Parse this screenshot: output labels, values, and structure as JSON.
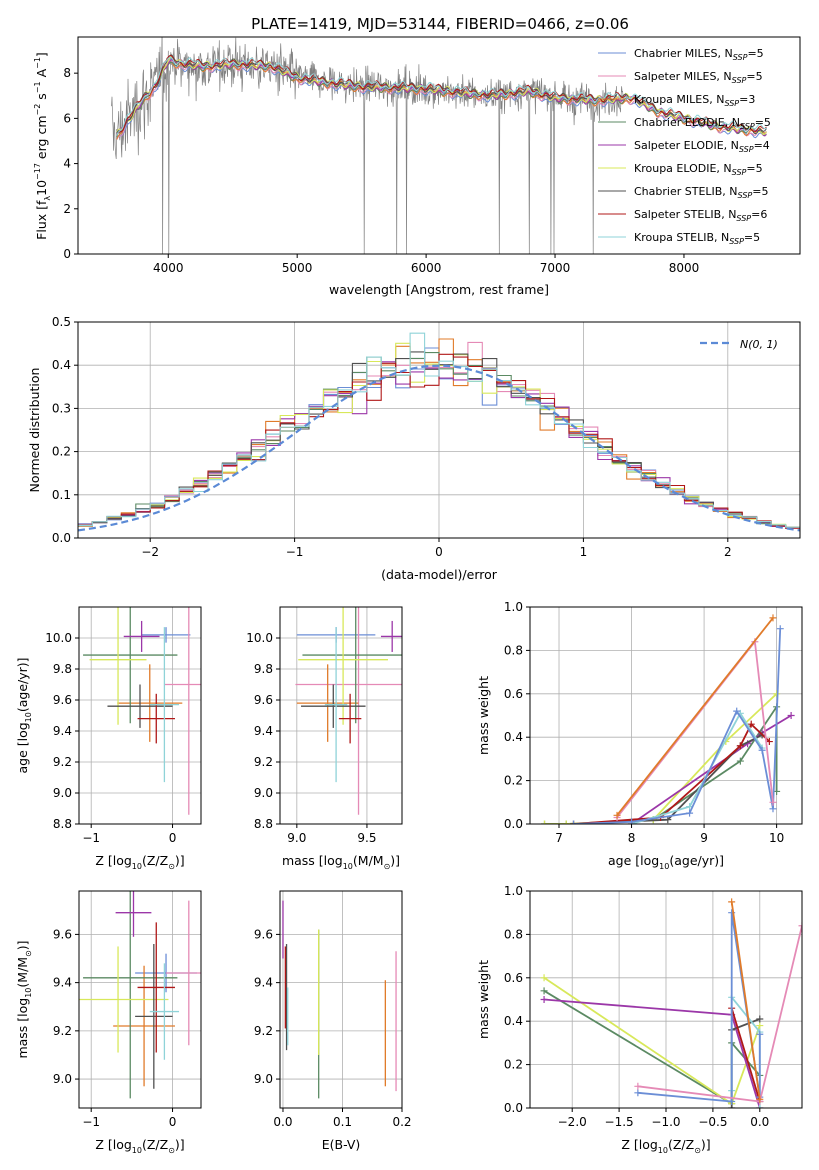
{
  "figure_title": "PLATE=1419, MJD=53144, FIBERID=0466, z=0.06",
  "colors": {
    "Chabrier MILES": "#6b8ed6",
    "Salpeter MILES": "#e58ab6",
    "Kroupa MILES": "#e07b2a",
    "Chabrier ELODIE": "#5b8a63",
    "Salpeter ELODIE": "#9b37a8",
    "Kroupa ELODIE": "#d8e85a",
    "Chabrier STELIB": "#505050",
    "Salpeter STELIB": "#b01818",
    "Kroupa STELIB": "#8fd3d8",
    "data": "#808080",
    "normal": "#5b8ad6",
    "grid": "#b0b0b0"
  },
  "chart_data": [
    {
      "id": "spectrum",
      "type": "line",
      "xlabel": "wavelength [Angstrom, rest frame]",
      "ylabel_parts": [
        "Flux [f",
        "λ",
        "10",
        "−17",
        " erg cm",
        "−2",
        " s",
        "−1",
        " A",
        "−1",
        "]"
      ],
      "xlim": [
        3300,
        8900
      ],
      "ylim": [
        0,
        9.6
      ],
      "xticks": [
        4000,
        5000,
        6000,
        7000,
        8000
      ],
      "yticks": [
        0,
        2,
        4,
        6,
        8
      ],
      "grid": false,
      "legend_position": "upper-right",
      "legend": [
        {
          "label": "Chabrier MILES, N",
          "sub": "SSP",
          "suffix": "=5"
        },
        {
          "label": "Salpeter MILES, N",
          "sub": "SSP",
          "suffix": "=5"
        },
        {
          "label": "Kroupa MILES, N",
          "sub": "SSP",
          "suffix": "=3"
        },
        {
          "label": "Chabrier ELODIE, N",
          "sub": "SSP",
          "suffix": "=5"
        },
        {
          "label": "Salpeter ELODIE, N",
          "sub": "SSP",
          "suffix": "=4"
        },
        {
          "label": "Kroupa ELODIE, N",
          "sub": "SSP",
          "suffix": "=5"
        },
        {
          "label": "Chabrier STELIB, N",
          "sub": "SSP",
          "suffix": "=5"
        },
        {
          "label": "Salpeter STELIB, N",
          "sub": "SSP",
          "suffix": "=6"
        },
        {
          "label": "Kroupa STELIB, N",
          "sub": "SSP",
          "suffix": "=5"
        }
      ],
      "data_range_angstrom": [
        3560,
        7540
      ],
      "model_range_angstrom": [
        3600,
        8650
      ],
      "continuum": [
        [
          3600,
          5.2
        ],
        [
          3700,
          6.0
        ],
        [
          3800,
          6.8
        ],
        [
          3900,
          7.4
        ],
        [
          4000,
          8.6
        ],
        [
          4100,
          8.4
        ],
        [
          4300,
          8.3
        ],
        [
          4500,
          8.4
        ],
        [
          4800,
          8.3
        ],
        [
          5000,
          7.8
        ],
        [
          5200,
          7.6
        ],
        [
          5500,
          7.4
        ],
        [
          6000,
          7.3
        ],
        [
          6500,
          7.0
        ],
        [
          6800,
          7.2
        ],
        [
          7000,
          6.9
        ],
        [
          7300,
          6.8
        ],
        [
          7600,
          6.9
        ],
        [
          7800,
          6.3
        ],
        [
          8000,
          6.0
        ],
        [
          8300,
          5.6
        ],
        [
          8650,
          5.4
        ]
      ]
    },
    {
      "id": "residuals",
      "type": "step",
      "xlabel": "(data-model)/error",
      "ylabel": "Normed distribution",
      "xlim": [
        -2.5,
        2.5
      ],
      "ylim": [
        0,
        0.5
      ],
      "xticks": [
        -2,
        -1,
        0,
        1,
        2
      ],
      "xtick_labels": [
        "−2",
        "−1",
        "0",
        "1",
        "2"
      ],
      "yticks": [
        0,
        0.1,
        0.2,
        0.3,
        0.4,
        0.5
      ],
      "ytick_labels": [
        "0.0",
        "0.1",
        "0.2",
        "0.3",
        "0.4",
        "0.5"
      ],
      "grid": true,
      "bin_width": 0.1,
      "legend": [
        {
          "label": "N(0, 1)",
          "style": "dashed"
        }
      ]
    },
    {
      "id": "age_vs_Z",
      "type": "errorbar",
      "xlabel_parts": [
        "Z [log",
        "10",
        "(Z/Z",
        "⊙",
        ")]"
      ],
      "ylabel_parts": [
        "age  [log",
        "10",
        "(age/yr)]"
      ],
      "xlim": [
        -1.15,
        0.35
      ],
      "ylim": [
        8.8,
        10.2
      ],
      "xticks": [
        -1,
        0
      ],
      "xtick_labels": [
        "−1",
        "0"
      ],
      "yticks": [
        8.8,
        9.0,
        9.2,
        9.4,
        9.6,
        9.8,
        10.0
      ],
      "ytick_labels": [
        "8.8",
        "9.0",
        "9.2",
        "9.4",
        "9.6",
        "9.8",
        "10.0"
      ],
      "grid": true,
      "points": [
        {
          "model": "Chabrier MILES",
          "x": -0.08,
          "y": 10.02,
          "xerr": 0.3,
          "yerr": 0.05
        },
        {
          "model": "Salpeter MILES",
          "x": 0.2,
          "y": 9.7,
          "xerr": 0.3,
          "yerr": 0.84
        },
        {
          "model": "Kroupa MILES",
          "x": -0.28,
          "y": 9.58,
          "xerr": 0.4,
          "yerr": 0.25
        },
        {
          "model": "Chabrier ELODIE",
          "x": -0.52,
          "y": 9.89,
          "xerr": 0.58,
          "yerr": 0.44
        },
        {
          "model": "Salpeter ELODIE",
          "x": -0.38,
          "y": 10.01,
          "xerr": 0.22,
          "yerr": 0.1
        },
        {
          "model": "Kroupa ELODIE",
          "x": -0.67,
          "y": 9.86,
          "xerr": 0.35,
          "yerr": 0.42
        },
        {
          "model": "Chabrier STELIB",
          "x": -0.4,
          "y": 9.56,
          "xerr": 0.4,
          "yerr": 0.14
        },
        {
          "model": "Salpeter STELIB",
          "x": -0.2,
          "y": 9.48,
          "xerr": 0.23,
          "yerr": 0.16
        },
        {
          "model": "Kroupa STELIB",
          "x": -0.1,
          "y": 9.57,
          "xerr": 0.18,
          "yerr": 0.5
        }
      ]
    },
    {
      "id": "age_vs_mass",
      "type": "errorbar",
      "xlabel_parts": [
        "mass [log",
        "10",
        "(M/M",
        "⊙",
        ")]"
      ],
      "xlim": [
        8.88,
        9.75
      ],
      "ylim": [
        8.8,
        10.2
      ],
      "xticks": [
        9.0,
        9.5
      ],
      "xtick_labels": [
        "9.0",
        "9.5"
      ],
      "yticks": [
        8.8,
        9.0,
        9.2,
        9.4,
        9.6,
        9.8,
        10.0
      ],
      "ytick_labels": [
        "8.8",
        "9.0",
        "9.2",
        "9.4",
        "9.6",
        "9.8",
        "10.0"
      ],
      "grid": true,
      "points": [
        {
          "model": "Chabrier MILES",
          "x": 9.28,
          "y": 10.02,
          "xerr": 0.28,
          "yerr": 0.05
        },
        {
          "model": "Salpeter MILES",
          "x": 9.44,
          "y": 9.7,
          "xerr": 0.45,
          "yerr": 0.84
        },
        {
          "model": "Kroupa MILES",
          "x": 9.22,
          "y": 9.58,
          "xerr": 0.22,
          "yerr": 0.25
        },
        {
          "model": "Chabrier ELODIE",
          "x": 9.42,
          "y": 9.89,
          "xerr": 0.38,
          "yerr": 0.44
        },
        {
          "model": "Salpeter ELODIE",
          "x": 9.68,
          "y": 10.01,
          "xerr": 0.08,
          "yerr": 0.1
        },
        {
          "model": "Kroupa ELODIE",
          "x": 9.33,
          "y": 9.86,
          "xerr": 0.32,
          "yerr": 0.42
        },
        {
          "model": "Chabrier STELIB",
          "x": 9.26,
          "y": 9.56,
          "xerr": 0.23,
          "yerr": 0.14
        },
        {
          "model": "Salpeter STELIB",
          "x": 9.38,
          "y": 9.48,
          "xerr": 0.08,
          "yerr": 0.16
        },
        {
          "model": "Kroupa STELIB",
          "x": 9.28,
          "y": 9.57,
          "xerr": 0.08,
          "yerr": 0.5
        }
      ]
    },
    {
      "id": "weight_vs_age",
      "type": "line",
      "xlabel_parts": [
        "age  [log",
        "10",
        "(age/yr)]"
      ],
      "ylabel": "mass weight",
      "xlim": [
        6.6,
        10.35
      ],
      "ylim": [
        0,
        1.0
      ],
      "xticks": [
        7,
        8,
        9,
        10
      ],
      "xtick_labels": [
        "7",
        "8",
        "9",
        "10"
      ],
      "yticks": [
        0,
        0.2,
        0.4,
        0.6,
        0.8,
        1.0
      ],
      "ytick_labels": [
        "0.0",
        "0.2",
        "0.4",
        "0.6",
        "0.8",
        "1.0"
      ],
      "grid": true,
      "series": [
        {
          "model": "Chabrier ELODIE",
          "x": [
            6.8,
            7.1,
            8.3,
            9.5,
            10.0,
            10.0
          ],
          "y": [
            0.0,
            0.0,
            0.02,
            0.29,
            0.54,
            0.15
          ]
        },
        {
          "model": "Kroupa ELODIE",
          "x": [
            6.8,
            7.1,
            8.3,
            9.3,
            10.0
          ],
          "y": [
            0.0,
            0.0,
            0.02,
            0.38,
            0.6
          ]
        },
        {
          "model": "Salpeter ELODIE",
          "x": [
            8.0,
            9.6,
            9.8,
            10.2
          ],
          "y": [
            0.0,
            0.37,
            0.42,
            0.5
          ]
        },
        {
          "model": "Chabrier STELIB",
          "x": [
            7.2,
            8.5,
            9.5,
            9.8
          ],
          "y": [
            0.0,
            0.02,
            0.36,
            0.41
          ]
        },
        {
          "model": "Salpeter STELIB",
          "x": [
            7.2,
            8.4,
            9.5,
            9.65,
            9.9
          ],
          "y": [
            0.0,
            0.03,
            0.36,
            0.46,
            0.38
          ]
        },
        {
          "model": "Kroupa STELIB",
          "x": [
            8.0,
            8.8,
            9.5,
            9.8
          ],
          "y": [
            0.0,
            0.08,
            0.51,
            0.35
          ]
        },
        {
          "model": "Chabrier MILES",
          "x": [
            7.2,
            8.0,
            8.8,
            9.45,
            9.8,
            9.95,
            10.05
          ],
          "y": [
            0.0,
            0.01,
            0.05,
            0.52,
            0.34,
            0.07,
            0.9
          ]
        },
        {
          "model": "Salpeter MILES",
          "x": [
            7.8,
            9.7,
            9.95
          ],
          "y": [
            0.03,
            0.84,
            0.1
          ]
        },
        {
          "model": "Kroupa MILES",
          "x": [
            7.8,
            9.95
          ],
          "y": [
            0.04,
            0.95
          ]
        }
      ]
    },
    {
      "id": "mass_vs_Z",
      "type": "errorbar",
      "xlabel_parts": [
        "Z [log",
        "10",
        "(Z/Z",
        "⊙",
        ")]"
      ],
      "ylabel_parts": [
        "mass [log",
        "10",
        "(M/M",
        "⊙",
        ")]"
      ],
      "xlim": [
        -1.15,
        0.35
      ],
      "ylim": [
        8.88,
        9.78
      ],
      "xticks": [
        -1,
        0
      ],
      "xtick_labels": [
        "−1",
        "0"
      ],
      "yticks": [
        9.0,
        9.2,
        9.4,
        9.6
      ],
      "ytick_labels": [
        "9.0",
        "9.2",
        "9.4",
        "9.6"
      ],
      "grid": true,
      "points": [
        {
          "model": "Chabrier MILES",
          "x": -0.08,
          "y": 9.44,
          "xerr": 0.38,
          "yerr": 0.08
        },
        {
          "model": "Salpeter MILES",
          "x": 0.2,
          "y": 9.44,
          "xerr": 0.28,
          "yerr": 0.3
        },
        {
          "model": "Kroupa MILES",
          "x": -0.35,
          "y": 9.22,
          "xerr": 0.38,
          "yerr": 0.25
        },
        {
          "model": "Chabrier ELODIE",
          "x": -0.52,
          "y": 9.42,
          "xerr": 0.58,
          "yerr": 0.5
        },
        {
          "model": "Salpeter ELODIE",
          "x": -0.48,
          "y": 9.69,
          "xerr": 0.22,
          "yerr": 0.1
        },
        {
          "model": "Kroupa ELODIE",
          "x": -0.67,
          "y": 9.33,
          "xerr": 0.62,
          "yerr": 0.22
        },
        {
          "model": "Chabrier STELIB",
          "x": -0.23,
          "y": 9.26,
          "xerr": 0.23,
          "yerr": 0.3
        },
        {
          "model": "Salpeter STELIB",
          "x": -0.2,
          "y": 9.38,
          "xerr": 0.23,
          "yerr": 0.27
        },
        {
          "model": "Kroupa STELIB",
          "x": -0.1,
          "y": 9.28,
          "xerr": 0.18,
          "yerr": 0.2
        }
      ]
    },
    {
      "id": "mass_vs_ebv",
      "type": "errorbar",
      "xlabel": "E(B-V)",
      "xlim": [
        -0.005,
        0.2
      ],
      "ylim": [
        8.88,
        9.78
      ],
      "xticks": [
        0.0,
        0.1,
        0.2
      ],
      "xtick_labels": [
        "0.0",
        "0.1",
        "0.2"
      ],
      "yticks": [
        9.0,
        9.2,
        9.4,
        9.6
      ],
      "ytick_labels": [
        "9.0",
        "9.2",
        "9.4",
        "9.6"
      ],
      "grid": true,
      "points": [
        {
          "model": "Chabrier MILES",
          "x": 0.005,
          "y": 9.44,
          "yerr": 0.08
        },
        {
          "model": "Salpeter MILES",
          "x": 0.19,
          "y": 9.24,
          "yerr": 0.29
        },
        {
          "model": "Kroupa MILES",
          "x": 0.172,
          "y": 9.19,
          "yerr": 0.22
        },
        {
          "model": "Chabrier ELODIE",
          "x": 0.06,
          "y": 9.27,
          "yerr": 0.35
        },
        {
          "model": "Salpeter ELODIE",
          "x": 0.0,
          "y": 9.62,
          "yerr": 0.12
        },
        {
          "model": "Kroupa ELODIE",
          "x": 0.06,
          "y": 9.36,
          "yerr": 0.26
        },
        {
          "model": "Chabrier STELIB",
          "x": 0.006,
          "y": 9.34,
          "yerr": 0.22
        },
        {
          "model": "Salpeter STELIB",
          "x": 0.004,
          "y": 9.38,
          "yerr": 0.17
        },
        {
          "model": "Kroupa STELIB",
          "x": 0.008,
          "y": 9.26,
          "yerr": 0.12
        }
      ]
    },
    {
      "id": "weight_vs_Z",
      "type": "line",
      "xlabel_parts": [
        "Z [log",
        "10",
        "(Z/Z",
        "⊙",
        ")]"
      ],
      "ylabel": "mass weight",
      "xlim": [
        -2.45,
        0.45
      ],
      "ylim": [
        0,
        1.0
      ],
      "xticks": [
        -2.0,
        -1.5,
        -1.0,
        -0.5,
        0.0
      ],
      "xtick_labels": [
        "−2.0",
        "−1.5",
        "−1.0",
        "−0.5",
        "0.0"
      ],
      "yticks": [
        0,
        0.2,
        0.4,
        0.6,
        0.8,
        1.0
      ],
      "ytick_labels": [
        "0.0",
        "0.2",
        "0.4",
        "0.6",
        "0.8",
        "1.0"
      ],
      "grid": true,
      "series": [
        {
          "model": "Chabrier ELODIE",
          "x": [
            -2.3,
            -0.3,
            -0.3,
            0.0
          ],
          "y": [
            0.54,
            0.02,
            0.3,
            0.15
          ]
        },
        {
          "model": "Kroupa ELODIE",
          "x": [
            -2.3,
            -0.3,
            0.0
          ],
          "y": [
            0.6,
            0.02,
            0.38
          ]
        },
        {
          "model": "Salpeter ELODIE",
          "x": [
            -2.3,
            -0.3,
            0.0
          ],
          "y": [
            0.5,
            0.43,
            0.0
          ]
        },
        {
          "model": "Chabrier STELIB",
          "x": [
            -0.3,
            -0.3,
            0.0
          ],
          "y": [
            0.0,
            0.36,
            0.41
          ]
        },
        {
          "model": "Salpeter STELIB",
          "x": [
            -0.3,
            0.0
          ],
          "y": [
            0.46,
            0.03
          ]
        },
        {
          "model": "Kroupa STELIB",
          "x": [
            -0.3,
            -0.3,
            0.0,
            0.0
          ],
          "y": [
            0.08,
            0.51,
            0.35,
            0.0
          ]
        },
        {
          "model": "Chabrier MILES",
          "x": [
            -1.3,
            -0.3,
            -0.3,
            0.0,
            0.0
          ],
          "y": [
            0.07,
            0.03,
            0.9,
            0.05,
            0.34
          ]
        },
        {
          "model": "Salpeter MILES",
          "x": [
            -1.3,
            0.0,
            0.45
          ],
          "y": [
            0.1,
            0.03,
            0.84
          ]
        },
        {
          "model": "Kroupa MILES",
          "x": [
            -0.3,
            0.0
          ],
          "y": [
            0.95,
            0.04
          ]
        }
      ]
    }
  ]
}
